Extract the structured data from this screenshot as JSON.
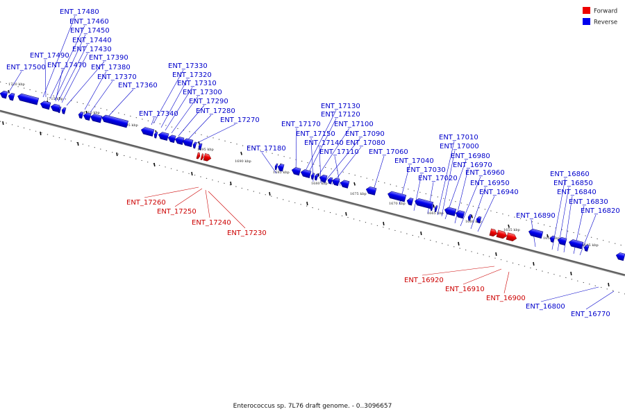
{
  "caption": "Enterococcus sp. 7L76 draft genome. - 0..3096657",
  "legend": [
    {
      "label": "Forward",
      "color": "#ee0000"
    },
    {
      "label": "Reverse",
      "color": "#0000ee"
    }
  ],
  "tick_labels": [
    "1720 kbp",
    "1715 kbp",
    "1710 kbp",
    "1705 kbp",
    "1700 kbp",
    "1695 kbp",
    "1690 kbp",
    "1685 kbp",
    "1680 kbp",
    "1675 kbp",
    "1670 kbp",
    "1665 kbp",
    "1660 kbp",
    "1655 kbp",
    "1650 kbp",
    "1645 kbp"
  ],
  "reverse_labels": [
    "ENT_17480",
    "ENT_17460",
    "ENT_17450",
    "ENT_17440",
    "ENT_17430",
    "ENT_17490",
    "ENT_17390",
    "ENT_17500",
    "ENT_17470",
    "ENT_17380",
    "ENT_17370",
    "ENT_17360",
    "ENT_17330",
    "ENT_17320",
    "ENT_17310",
    "ENT_17300",
    "ENT_17290",
    "ENT_17340",
    "ENT_17280",
    "ENT_17270",
    "ENT_17180",
    "ENT_17130",
    "ENT_17120",
    "ENT_17170",
    "ENT_17100",
    "ENT_17150",
    "ENT_17090",
    "ENT_17140",
    "ENT_17080",
    "ENT_17110",
    "ENT_17060",
    "ENT_17040",
    "ENT_17030",
    "ENT_17020",
    "ENT_17010",
    "ENT_17000",
    "ENT_16980",
    "ENT_16970",
    "ENT_16960",
    "ENT_16950",
    "ENT_16940",
    "ENT_16890",
    "ENT_16860",
    "ENT_16850",
    "ENT_16840",
    "ENT_16830",
    "ENT_16820",
    "ENT_16800",
    "ENT_16770"
  ],
  "forward_labels": [
    "ENT_17260",
    "ENT_17250",
    "ENT_17240",
    "ENT_17230",
    "ENT_16920",
    "ENT_16910",
    "ENT_16900"
  ]
}
